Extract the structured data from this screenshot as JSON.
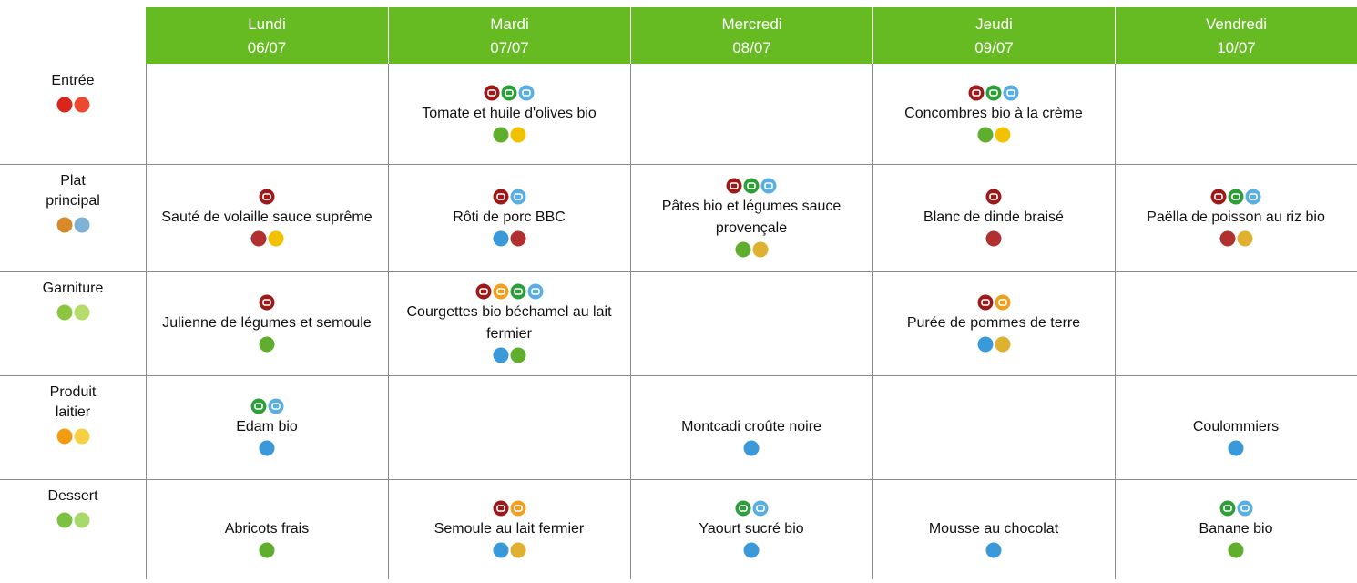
{
  "header": {
    "days": [
      {
        "name": "Lundi",
        "date": "06/07"
      },
      {
        "name": "Mardi",
        "date": "07/07"
      },
      {
        "name": "Mercredi",
        "date": "08/07"
      },
      {
        "name": "Jeudi",
        "date": "09/07"
      },
      {
        "name": "Vendredi",
        "date": "10/07"
      }
    ]
  },
  "rows": [
    {
      "label": "Entrée",
      "cells": [
        null,
        "Tomate et huile d'olives bio",
        null,
        "Concombres bio à la crème",
        null
      ]
    },
    {
      "label": "Plat principal",
      "cells": [
        "Sauté de volaille sauce suprême",
        "Rôti de porc BBC",
        "Pâtes bio et légumes sauce provençale",
        "Blanc de dinde braisé",
        "Paëlla de poisson au riz bio"
      ]
    },
    {
      "label": "Garniture",
      "cells": [
        "Julienne de légumes et semoule",
        "Courgettes bio béchamel au lait fermier",
        null,
        "Purée de pommes de terre",
        null
      ]
    },
    {
      "label": "Produit laitier",
      "cells": [
        "Edam bio",
        null,
        "Montcadi croûte noire",
        null,
        "Coulommiers"
      ]
    },
    {
      "label": "Dessert",
      "cells": [
        "Abricots frais",
        "Semoule au lait fermier",
        "Yaourt sucré bio",
        "Mousse au chocolat",
        "Banane bio"
      ]
    }
  ]
}
